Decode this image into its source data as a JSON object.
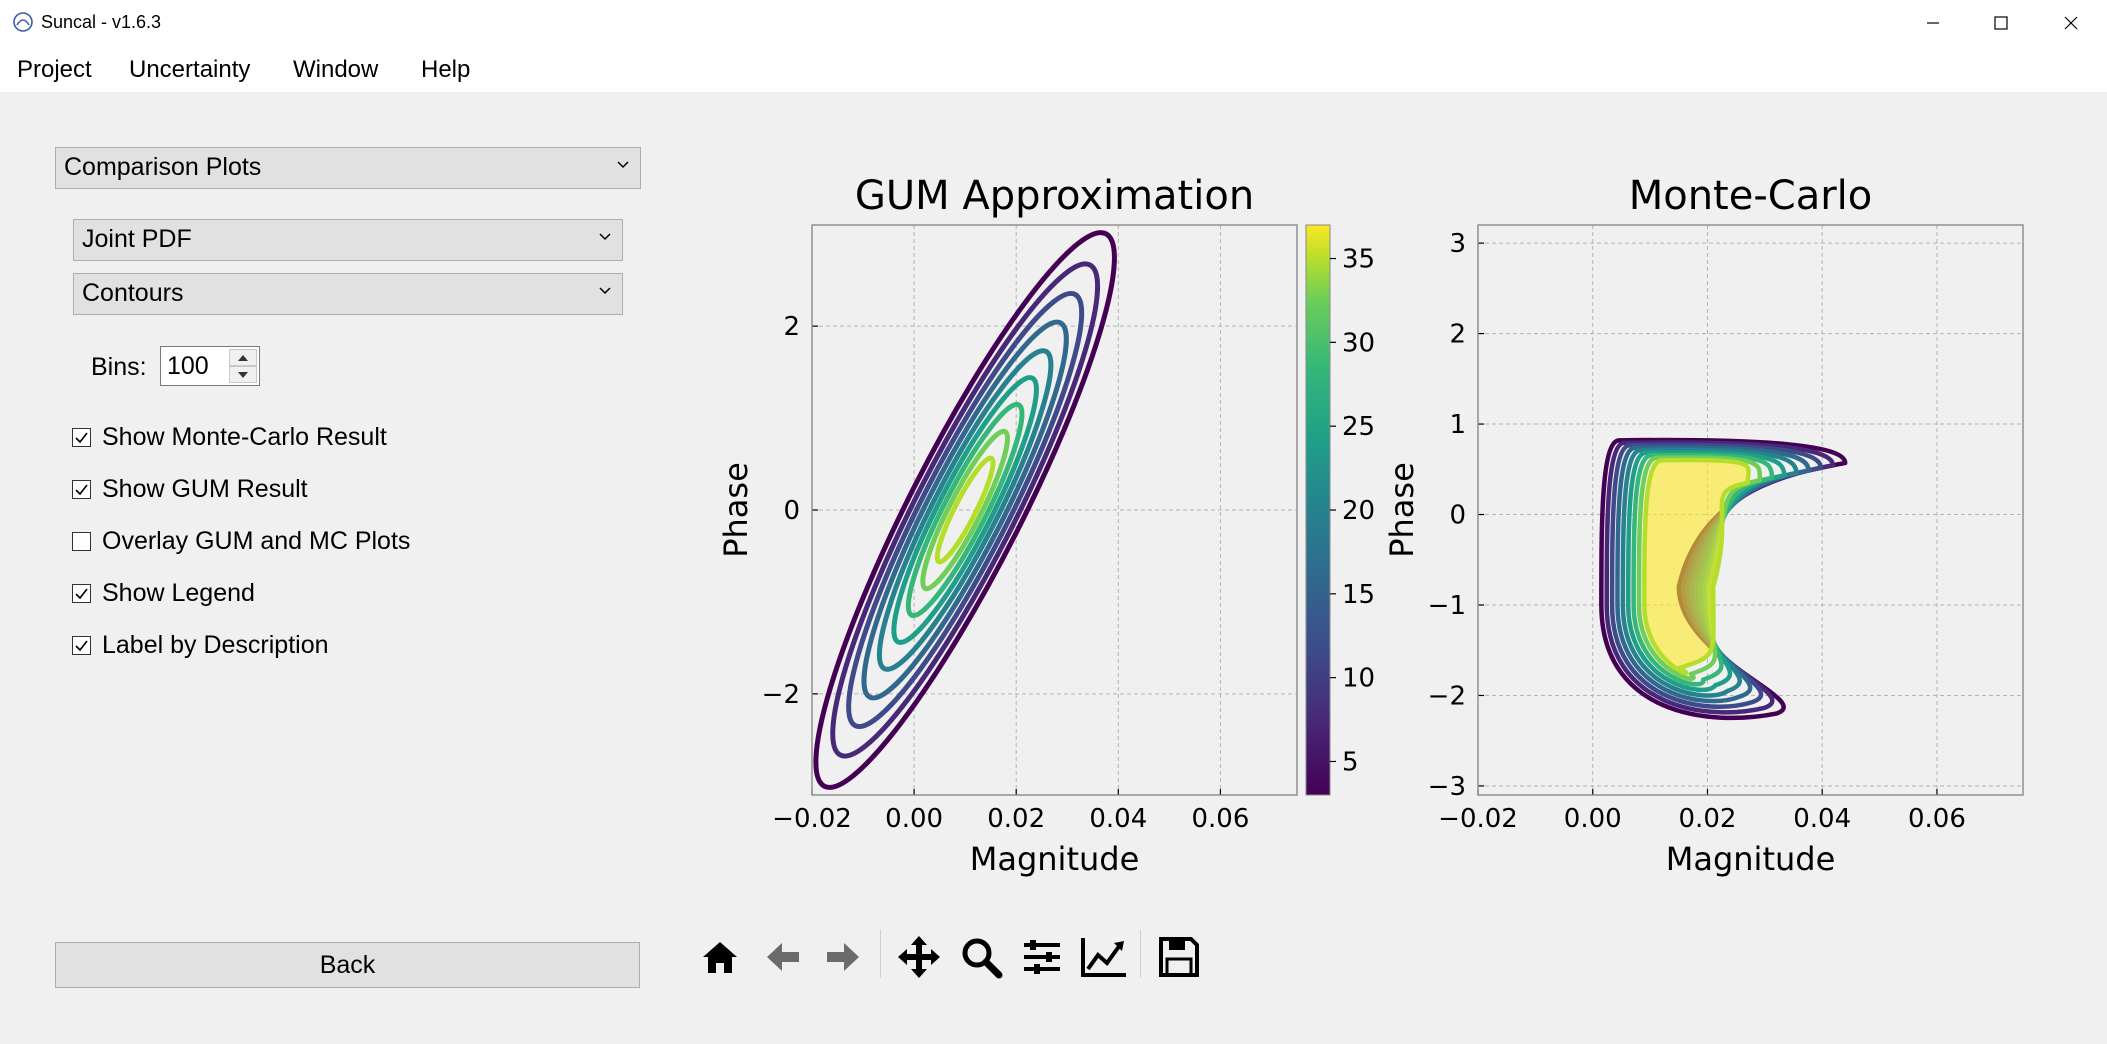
{
  "window": {
    "title": "Suncal - v1.6.3"
  },
  "menu": [
    "Project",
    "Uncertainty",
    "Window",
    "Help"
  ],
  "sidebar": {
    "plot_select": "Comparison Plots",
    "pdf_select": "Joint PDF",
    "style_select": "Contours",
    "bins_label": "Bins:",
    "bins_value": "100",
    "checks": [
      {
        "label": "Show Monte-Carlo Result",
        "checked": true
      },
      {
        "label": "Show GUM Result",
        "checked": true
      },
      {
        "label": "Overlay GUM and MC Plots",
        "checked": false
      },
      {
        "label": "Show Legend",
        "checked": true
      },
      {
        "label": "Label by Description",
        "checked": true
      }
    ],
    "back_label": "Back"
  },
  "toolbar": [
    "home-icon",
    "back-arrow-icon",
    "forward-arrow-icon",
    "pan-icon",
    "zoom-icon",
    "configure-subplots-icon",
    "edit-axis-icon",
    "save-icon"
  ],
  "colors": {
    "viridis": [
      "#440154",
      "#482878",
      "#3e4a89",
      "#31688e",
      "#26828e",
      "#1f9e89",
      "#35b779",
      "#6ece58",
      "#b5de2b",
      "#fde725"
    ]
  },
  "chart_data": [
    {
      "type": "contour",
      "title": "GUM Approximation",
      "xlabel": "Magnitude",
      "ylabel": "Phase",
      "xlim": [
        -0.02,
        0.075
      ],
      "ylim": [
        -3.1,
        3.1
      ],
      "xticks": [
        "−0.02",
        "0.00",
        "0.02",
        "0.04",
        "0.06"
      ],
      "yticks": [
        "−2",
        "0",
        "2"
      ],
      "grid": true,
      "colorbar": {
        "ticks": [
          "5",
          "10",
          "15",
          "20",
          "25",
          "30",
          "35"
        ],
        "range": [
          3,
          37
        ]
      },
      "contours": {
        "center": [
          0.01,
          0.0
        ],
        "levels": 9,
        "shape": "ellipse-tilted"
      }
    },
    {
      "type": "contour",
      "title": "Monte-Carlo",
      "xlabel": "Magnitude",
      "ylabel": "Phase",
      "xlim": [
        -0.02,
        0.075
      ],
      "ylim": [
        -3.1,
        3.2
      ],
      "xticks": [
        "−0.02",
        "0.00",
        "0.02",
        "0.04",
        "0.06"
      ],
      "yticks": [
        "3",
        "2",
        "1",
        "0",
        "−1",
        "−2",
        "−3"
      ],
      "grid": true,
      "contours": {
        "levels": 9,
        "shape": "crescent"
      }
    }
  ]
}
